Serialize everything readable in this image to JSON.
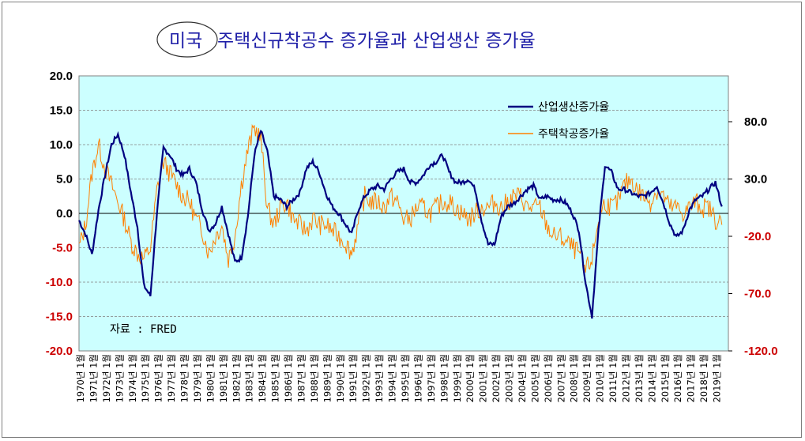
{
  "chart_data": {
    "type": "line",
    "title": "미국 주택신규착공수 증가율과 산업생산 증가율",
    "title_highlight": "미국",
    "source_note": "자료 : FRED",
    "y_left": {
      "ylim": [
        -20,
        20
      ],
      "ticks": [
        "20.0",
        "15.0",
        "10.0",
        "5.0",
        "0.0",
        "-5.0",
        "-10.0",
        "-15.0",
        "-20.0"
      ]
    },
    "y_right": {
      "ylim": [
        -120,
        120
      ],
      "ticks": [
        "80.0",
        "30.0",
        "-20.0",
        "-70.0",
        "-120.0"
      ]
    },
    "x_range": [
      1970,
      2020
    ],
    "x_tick_labels": [
      "1970년 1월",
      "1971년 1월",
      "1972년 1월",
      "1973년 1월",
      "1974년 1월",
      "1975년 1월",
      "1976년 1월",
      "1977년 1월",
      "1978년 1월",
      "1979년 1월",
      "1980년 1월",
      "1981년 1월",
      "1982년 1월",
      "1983년 1월",
      "1984년 1월",
      "1985년 1월",
      "1986년 1월",
      "1987년 1월",
      "1988년 1월",
      "1989년 1월",
      "1990년 1월",
      "1991년 1월",
      "1992년 1월",
      "1993년 1월",
      "1994년 1월",
      "1995년 1월",
      "1996년 1월",
      "1997년 1월",
      "1998년 1월",
      "1999년 1월",
      "2000년 1월",
      "2001년 1월",
      "2002년 1월",
      "2003년 1월",
      "2004년 1월",
      "2005년 1월",
      "2006년 1월",
      "2007년 1월",
      "2008년 1월",
      "2009년 1월",
      "2010년 1월",
      "2011년 1월",
      "2012년 1월",
      "2013년 1월",
      "2014년 1월",
      "2015년 1월",
      "2016년 1월",
      "2017년 1월",
      "2018년 1월",
      "2019년 1월"
    ],
    "series": [
      {
        "name": "산업생산증가율",
        "axis": "left",
        "color": "#000080",
        "x": [
          1970.0,
          1970.5,
          1971.0,
          1971.5,
          1972.0,
          1972.5,
          1973.0,
          1973.5,
          1974.0,
          1974.5,
          1975.0,
          1975.5,
          1976.0,
          1976.5,
          1977.0,
          1977.5,
          1978.0,
          1978.5,
          1979.0,
          1979.5,
          1980.0,
          1980.5,
          1981.0,
          1981.5,
          1982.0,
          1982.5,
          1983.0,
          1983.5,
          1984.0,
          1984.5,
          1985.0,
          1985.5,
          1986.0,
          1986.5,
          1987.0,
          1987.5,
          1988.0,
          1988.5,
          1989.0,
          1989.5,
          1990.0,
          1990.5,
          1991.0,
          1991.5,
          1992.0,
          1992.5,
          1993.0,
          1993.5,
          1994.0,
          1994.5,
          1995.0,
          1995.5,
          1996.0,
          1996.5,
          1997.0,
          1997.5,
          1998.0,
          1998.5,
          1999.0,
          1999.5,
          2000.0,
          2000.5,
          2001.0,
          2001.5,
          2002.0,
          2002.5,
          2003.0,
          2003.5,
          2004.0,
          2004.5,
          2005.0,
          2005.5,
          2006.0,
          2006.5,
          2007.0,
          2007.5,
          2008.0,
          2008.5,
          2009.0,
          2009.5,
          2010.0,
          2010.5,
          2011.0,
          2011.5,
          2012.0,
          2012.5,
          2013.0,
          2013.5,
          2014.0,
          2014.5,
          2015.0,
          2015.5,
          2016.0,
          2016.5,
          2017.0,
          2017.5,
          2018.0,
          2018.5,
          2019.0,
          2019.5
        ],
        "values": [
          -1.0,
          -3.0,
          -6.0,
          0.5,
          5.5,
          10.0,
          11.5,
          8.5,
          3.0,
          -2.0,
          -10.5,
          -12.0,
          0.0,
          9.5,
          8.5,
          6.5,
          5.5,
          6.5,
          4.5,
          0.5,
          -2.5,
          -1.5,
          1.0,
          -3.0,
          -7.0,
          -6.5,
          -0.5,
          8.5,
          12.0,
          9.0,
          2.5,
          2.0,
          1.0,
          2.0,
          3.0,
          6.5,
          7.5,
          6.0,
          3.0,
          1.0,
          0.0,
          -1.5,
          -3.0,
          0.5,
          2.5,
          3.5,
          4.0,
          3.5,
          5.0,
          6.0,
          6.5,
          4.5,
          4.5,
          5.5,
          7.0,
          7.5,
          8.5,
          6.0,
          4.5,
          4.5,
          5.0,
          3.5,
          -1.0,
          -4.5,
          -4.5,
          -0.5,
          1.0,
          1.5,
          2.5,
          3.5,
          4.0,
          2.0,
          2.5,
          2.0,
          2.0,
          1.5,
          0.0,
          -2.5,
          -10.0,
          -15.0,
          -2.5,
          7.0,
          6.0,
          3.5,
          3.5,
          3.0,
          2.5,
          2.5,
          3.0,
          4.0,
          1.5,
          -1.5,
          -3.5,
          -2.5,
          0.5,
          2.0,
          2.5,
          3.5,
          4.5,
          1.0
        ]
      },
      {
        "name": "주택착공증가율",
        "axis": "right",
        "color": "#ff8000",
        "x": [
          1970.0,
          1970.5,
          1971.0,
          1971.5,
          1972.0,
          1972.5,
          1973.0,
          1973.5,
          1974.0,
          1974.5,
          1975.0,
          1975.5,
          1976.0,
          1976.5,
          1977.0,
          1977.5,
          1978.0,
          1978.5,
          1979.0,
          1979.5,
          1980.0,
          1980.5,
          1981.0,
          1981.5,
          1982.0,
          1982.5,
          1983.0,
          1983.5,
          1984.0,
          1984.5,
          1985.0,
          1985.5,
          1986.0,
          1986.5,
          1987.0,
          1987.5,
          1988.0,
          1988.5,
          1989.0,
          1989.5,
          1990.0,
          1990.5,
          1991.0,
          1991.5,
          1992.0,
          1992.5,
          1993.0,
          1993.5,
          1994.0,
          1994.5,
          1995.0,
          1995.5,
          1996.0,
          1996.5,
          1997.0,
          1997.5,
          1998.0,
          1998.5,
          1999.0,
          1999.5,
          2000.0,
          2000.5,
          2001.0,
          2001.5,
          2002.0,
          2002.5,
          2003.0,
          2003.5,
          2004.0,
          2004.5,
          2005.0,
          2005.5,
          2006.0,
          2006.5,
          2007.0,
          2007.5,
          2008.0,
          2008.5,
          2009.0,
          2009.5,
          2010.0,
          2010.5,
          2011.0,
          2011.5,
          2012.0,
          2012.5,
          2013.0,
          2013.5,
          2014.0,
          2014.5,
          2015.0,
          2015.5,
          2016.0,
          2016.5,
          2017.0,
          2017.5,
          2018.0,
          2018.5,
          2019.0,
          2019.5
        ],
        "values": [
          -30.0,
          -10.0,
          35.0,
          60.0,
          40.0,
          25.0,
          10.0,
          -5.0,
          -25.0,
          -35.0,
          -40.0,
          -30.0,
          20.0,
          45.0,
          35.0,
          25.0,
          15.0,
          10.0,
          -5.0,
          -15.0,
          -35.0,
          -20.0,
          -10.0,
          -40.0,
          -20.0,
          25.0,
          55.0,
          75.0,
          65.0,
          5.0,
          -10.0,
          5.0,
          10.0,
          -5.0,
          -10.0,
          -15.0,
          -5.0,
          -10.0,
          -10.0,
          -15.0,
          -20.0,
          -25.0,
          -35.0,
          -10.0,
          15.0,
          10.0,
          10.0,
          5.0,
          15.0,
          10.0,
          -5.0,
          -5.0,
          5.0,
          5.0,
          0.0,
          5.0,
          10.0,
          10.0,
          5.0,
          0.0,
          -5.0,
          0.0,
          5.0,
          5.0,
          10.0,
          5.0,
          10.0,
          15.0,
          15.0,
          5.0,
          5.0,
          5.0,
          -10.0,
          -20.0,
          -20.0,
          -25.0,
          -30.0,
          -35.0,
          -50.0,
          -40.0,
          -5.0,
          10.0,
          5.0,
          10.0,
          25.0,
          30.0,
          20.0,
          15.0,
          10.0,
          20.0,
          15.0,
          5.0,
          5.0,
          0.0,
          5.0,
          10.0,
          5.0,
          5.0,
          -5.0,
          -10.0
        ]
      }
    ],
    "legend": [
      "산업생산증가율",
      "주택착공증가율"
    ],
    "legend_position": "top-right",
    "grid": true,
    "plot_background": "#ccffff"
  }
}
